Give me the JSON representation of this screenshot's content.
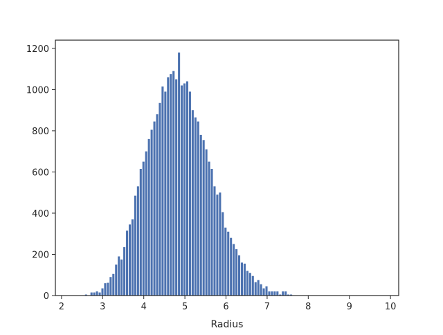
{
  "chart_data": {
    "type": "bar",
    "title": "",
    "xlabel": "Radius",
    "ylabel": "",
    "xlim": [
      1.85,
      10.2
    ],
    "ylim": [
      0,
      1240
    ],
    "xticks": [
      2,
      3,
      4,
      5,
      6,
      7,
      8,
      9,
      10
    ],
    "yticks": [
      0,
      200,
      400,
      600,
      800,
      1000,
      1200
    ],
    "bin_start": 2.57,
    "bin_width": 0.0665,
    "values": [
      5,
      0,
      15,
      15,
      20,
      15,
      35,
      60,
      62,
      90,
      105,
      150,
      190,
      175,
      235,
      315,
      345,
      370,
      485,
      530,
      615,
      650,
      700,
      760,
      805,
      845,
      880,
      935,
      1015,
      990,
      1060,
      1075,
      1090,
      1050,
      1180,
      1020,
      1030,
      1040,
      990,
      900,
      865,
      845,
      780,
      755,
      710,
      650,
      615,
      530,
      490,
      500,
      405,
      330,
      310,
      280,
      250,
      225,
      195,
      160,
      155,
      120,
      110,
      95,
      65,
      75,
      55,
      35,
      45,
      20,
      20,
      20,
      20,
      5,
      20,
      20,
      5,
      5
    ],
    "color": "#4c72b0",
    "grid": false,
    "legend": "none"
  }
}
